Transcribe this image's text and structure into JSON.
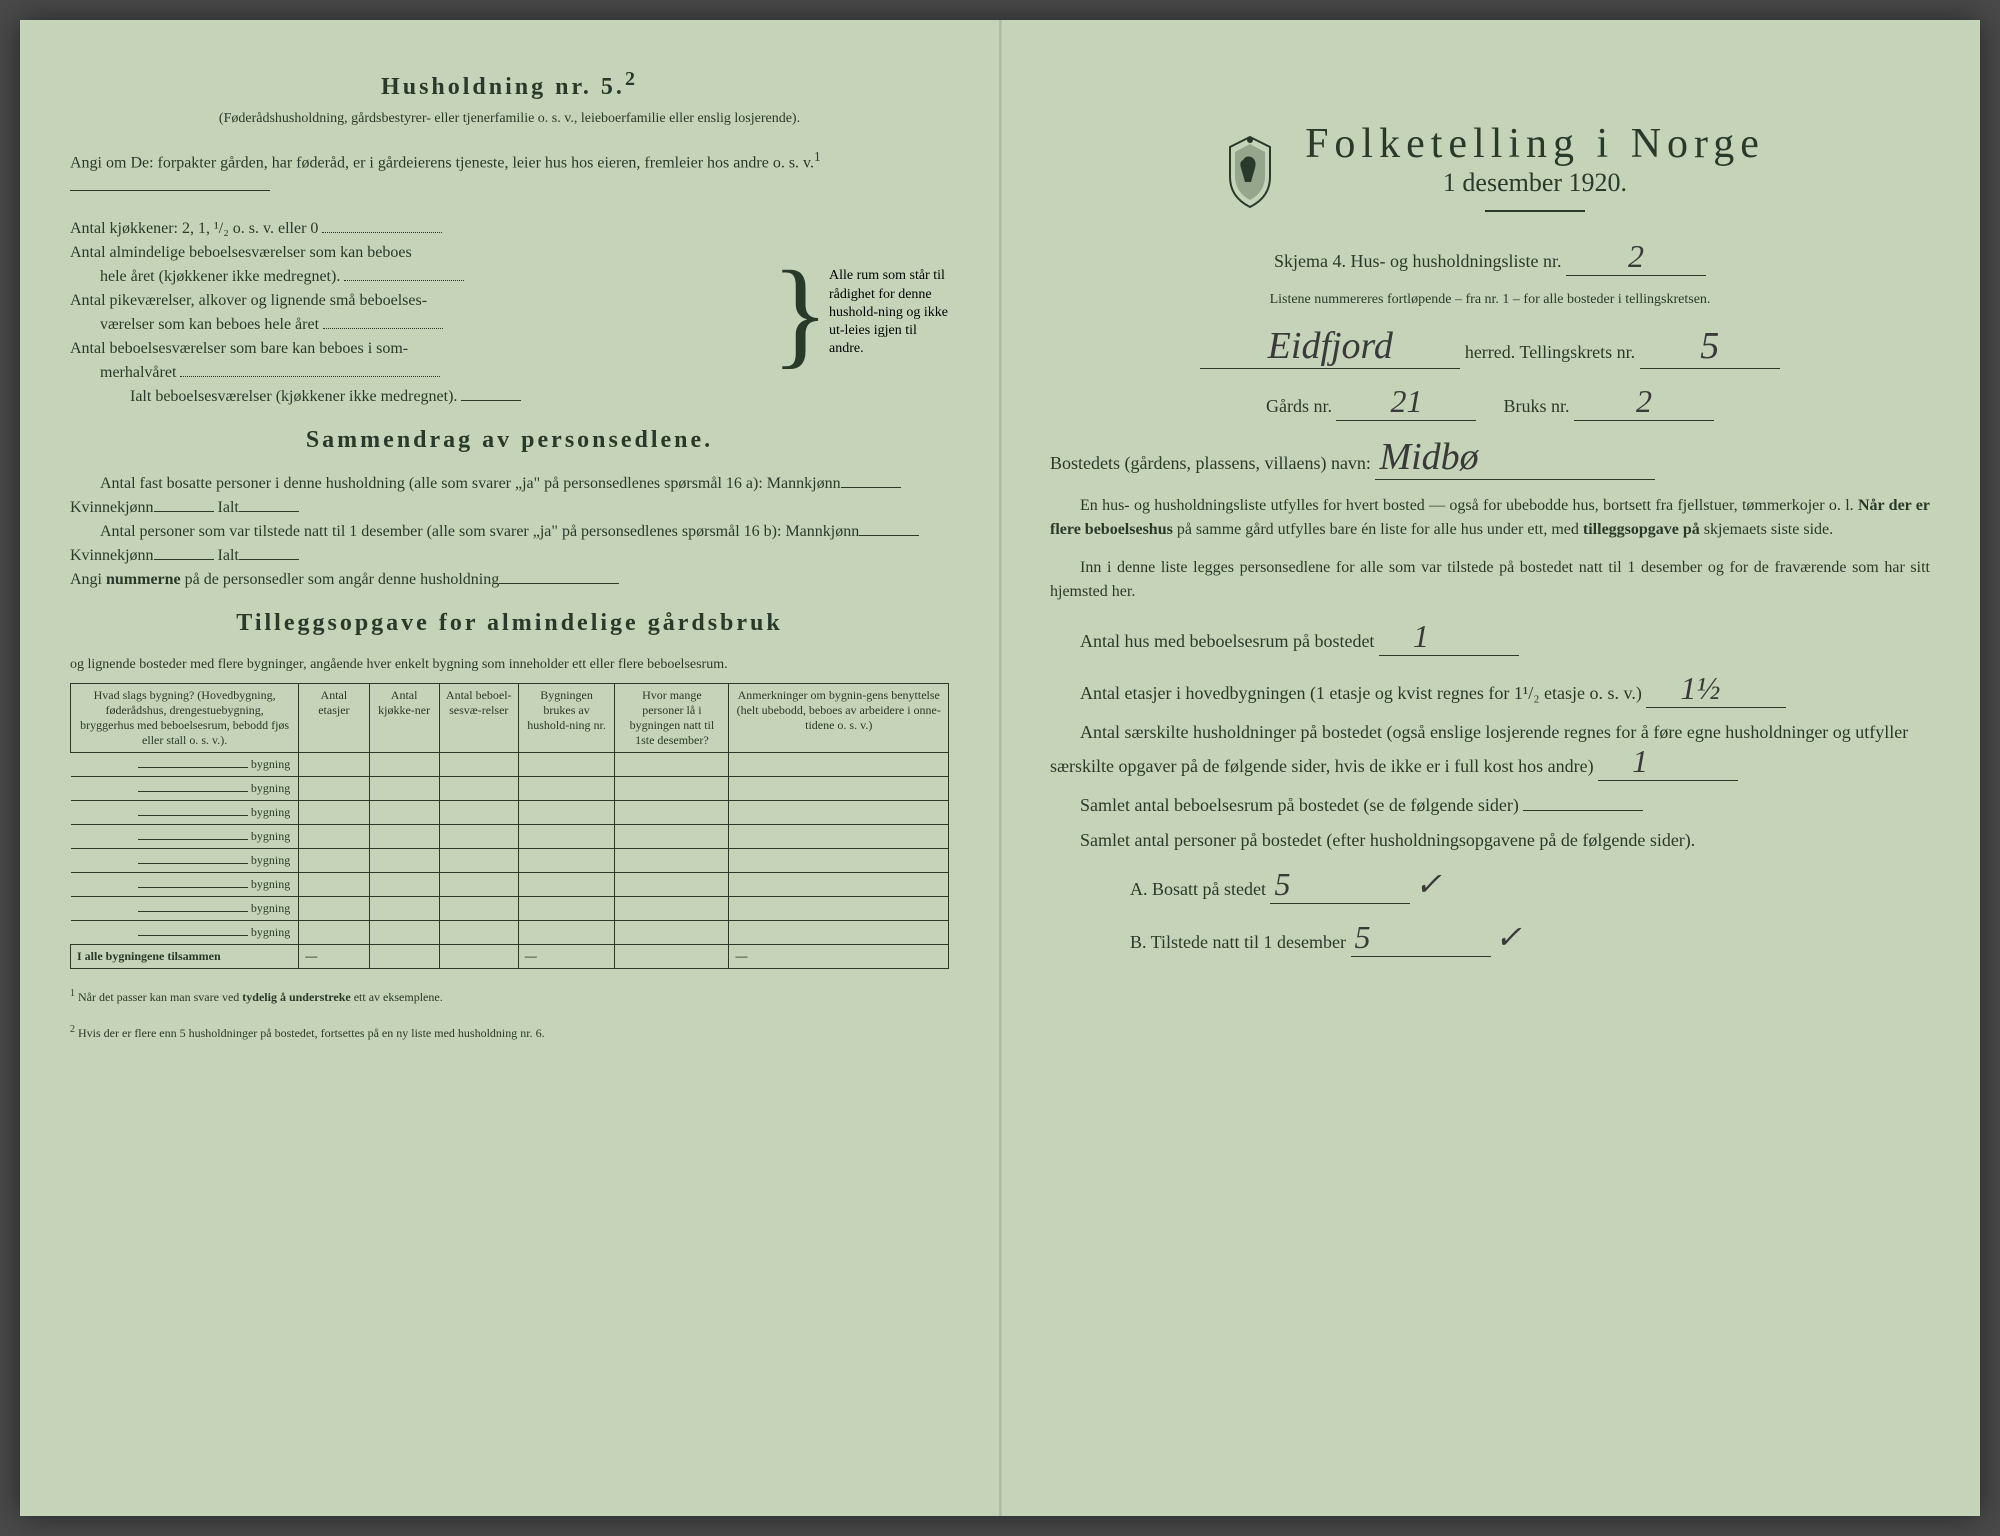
{
  "colors": {
    "paper": "#c5d4b8",
    "ink": "#2a3a2a",
    "handwriting": "#3a3a3a",
    "background": "#4a4a4a"
  },
  "left": {
    "heading": "Husholdning nr. 5.",
    "heading_sup": "2",
    "sub1": "(Føderådshusholdning, gårdsbestyrer- eller tjenerfamilie o. s. v., leieboerfamilie eller enslig losjerende).",
    "angi_line": "Angi om De:  forpakter gården, har føderåd, er i gårdeierens tjeneste, leier hus hos eieren, fremleier hos andre o. s. v.",
    "angi_sup": "1",
    "rows": {
      "r1": "Antal kjøkkener: 2, 1, ¹/₂ o. s. v. eller 0",
      "r2a": "Antal almindelige beboelsesværelser som kan beboes",
      "r2b": "hele året (kjøkkener ikke medregnet).",
      "r3a": "Antal pikeværelser, alkover og lignende små beboelses-",
      "r3b": "værelser som kan beboes hele året",
      "r4a": "Antal beboelsesværelser som bare kan beboes i som-",
      "r4b": "merhalvåret",
      "r5": "Ialt beboelsesværelser (kjøkkener ikke medregnet)."
    },
    "brace_text": "Alle rum som står til rådighet for denne hushold-ning og ikke ut-leies igjen til andre.",
    "sammen_heading": "Sammendrag av personsedlene.",
    "sammen_p1a": "Antal fast bosatte personer i denne husholdning (alle som svarer „ja\" på personsedlenes spørsmål 16 a): Mannkjønn",
    "sammen_p1b": "Kvinnekjønn",
    "sammen_p1c": "Ialt",
    "sammen_p2a": "Antal personer som var tilstede natt til 1 desember (alle som svarer „ja\" på personsedlenes spørsmål 16 b): Mannkjønn",
    "sammen_p2b": "Kvinnekjønn",
    "sammen_p2c": "Ialt",
    "sammen_p3_prefix": "Angi ",
    "sammen_p3_bold": "nummerne",
    "sammen_p3_rest": " på de personsedler som angår denne husholdning",
    "tillegg_heading": "Tilleggsopgave for almindelige gårdsbruk",
    "tillegg_sub": "og lignende bosteder med flere bygninger, angående hver enkelt bygning som inneholder ett eller flere beboelsesrum.",
    "table": {
      "headers": [
        "Hvad slags bygning?\n(Hovedbygning, føderådshus, drengestuebygning, bryggerhus med beboelsesrum, bebodd fjøs eller stall o. s. v.).",
        "Antal etasjer",
        "Antal kjøkke-ner",
        "Antal beboel-sesvæ-relser",
        "Bygningen brukes av hushold-ning nr.",
        "Hvor mange personer lå i bygningen natt til 1ste desember?",
        "Anmerkninger om bygnin-gens benyttelse (helt ubebodd, beboes av arbeidere i onne-tidene o. s. v.)"
      ],
      "row_label": "bygning",
      "row_count": 8,
      "total_label": "I alle bygningene tilsammen"
    },
    "footer1": "Når det passer kan man svare ved ",
    "footer1_bold": "tydelig å understreke",
    "footer1_rest": " ett av eksemplene.",
    "footer2": "Hvis der er flere enn 5 husholdninger på bostedet, fortsettes på en ny liste med husholdning nr. 6."
  },
  "right": {
    "title": "Folketelling i Norge",
    "subtitle": "1 desember 1920.",
    "skjema": "Skjema 4.  Hus- og husholdningsliste nr.",
    "skjema_value": "2",
    "liste_note": "Listene nummereres fortløpende – fra nr. 1 – for alle bosteder i tellingskretsen.",
    "herred_value": "Eidfjord",
    "herred_label": "herred.  Tellingskrets nr.",
    "krets_value": "5",
    "gards_label": "Gårds nr.",
    "gards_value": "21",
    "bruks_label": "Bruks nr.",
    "bruks_value": "2",
    "bosted_label": "Bostedets (gårdens, plassens, villaens) navn:",
    "bosted_value": "Midbø",
    "para1": "En hus- og husholdningsliste utfylles for hvert bosted — også for ubebodde hus, bortsett fra fjellstuer, tømmerkojer o. l.  ",
    "para1_bold1": "Når der er flere beboelseshus",
    "para1_mid": " på samme gård utfylles bare én liste for alle hus under ett, med ",
    "para1_bold2": "tilleggsopgave på",
    "para1_end": " skjemaets siste side.",
    "para2": "Inn i denne liste legges personsedlene for alle som var tilstede på bostedet natt til 1 desember og for de fraværende som har sitt hjemsted her.",
    "q1": "Antal hus med beboelsesrum på bostedet",
    "q1_value": "1",
    "q2": "Antal etasjer i hovedbygningen (1 etasje og kvist regnes for 1¹/₂ etasje o. s. v.)",
    "q2_value": "1½",
    "q3": "Antal særskilte husholdninger på bostedet (også enslige losjerende regnes for å føre egne husholdninger og utfyller særskilte opgaver på de følgende sider, hvis de ikke er i full kost hos andre)",
    "q3_value": "1",
    "q4": "Samlet antal beboelsesrum på bostedet (se de følgende sider)",
    "q5": "Samlet antal personer på bostedet (efter husholdningsopgavene på de følgende sider).",
    "qA": "A.  Bosatt på stedet",
    "qA_value": "5",
    "qA_check": "✓",
    "qB": "B.  Tilstede natt til 1 desember",
    "qB_value": "5",
    "qB_check": "✓"
  }
}
